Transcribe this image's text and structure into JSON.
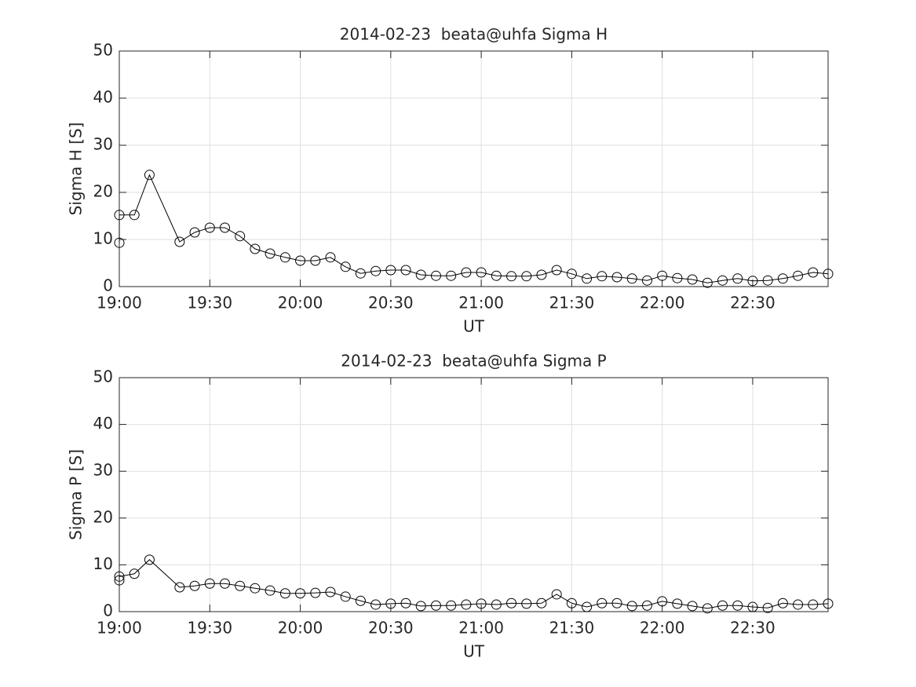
{
  "chart_data": [
    {
      "type": "line",
      "title": "2014-02-23  beata@uhfa Sigma H",
      "xlabel": "UT",
      "ylabel": "Sigma H [S]",
      "color": "#000000",
      "marker": "circle",
      "grid": true,
      "x": [
        "19:00",
        "19:00",
        "19:05",
        "19:10",
        "19:20",
        "19:25",
        "19:30",
        "19:35",
        "19:40",
        "19:45",
        "19:50",
        "19:55",
        "20:00",
        "20:05",
        "20:10",
        "20:15",
        "20:20",
        "20:25",
        "20:30",
        "20:35",
        "20:40",
        "20:45",
        "20:50",
        "20:55",
        "21:00",
        "21:05",
        "21:10",
        "21:15",
        "21:20",
        "21:25",
        "21:30",
        "21:35",
        "21:40",
        "21:45",
        "21:50",
        "21:55",
        "22:00",
        "22:05",
        "22:10",
        "22:15",
        "22:20",
        "22:25",
        "22:30",
        "22:35",
        "22:40",
        "22:45",
        "22:50",
        "22:55"
      ],
      "values": [
        9.3,
        15.2,
        15.2,
        23.7,
        9.5,
        11.5,
        12.5,
        12.5,
        10.7,
        8.0,
        7.0,
        6.2,
        5.5,
        5.5,
        6.2,
        4.2,
        2.8,
        3.3,
        3.5,
        3.5,
        2.5,
        2.3,
        2.3,
        3.0,
        3.0,
        2.3,
        2.2,
        2.2,
        2.5,
        3.5,
        2.7,
        1.7,
        2.2,
        2.0,
        1.7,
        1.3,
        2.3,
        1.8,
        1.5,
        0.8,
        1.3,
        1.7,
        1.2,
        1.3,
        1.7,
        2.3,
        3.0,
        2.7
      ],
      "xlim": [
        "19:00",
        "22:55"
      ],
      "xticks": [
        "19:00",
        "19:30",
        "20:00",
        "20:30",
        "21:00",
        "21:30",
        "22:00",
        "22:30"
      ],
      "ylim": [
        0,
        50
      ],
      "yticks": [
        0,
        10,
        20,
        30,
        40,
        50
      ]
    },
    {
      "type": "line",
      "title": "2014-02-23  beata@uhfa Sigma P",
      "xlabel": "UT",
      "ylabel": "Sigma P [S]",
      "color": "#000000",
      "marker": "circle",
      "grid": true,
      "x": [
        "19:00",
        "19:00",
        "19:05",
        "19:10",
        "19:20",
        "19:25",
        "19:30",
        "19:35",
        "19:40",
        "19:45",
        "19:50",
        "19:55",
        "20:00",
        "20:05",
        "20:10",
        "20:15",
        "20:20",
        "20:25",
        "20:30",
        "20:35",
        "20:40",
        "20:45",
        "20:50",
        "20:55",
        "21:00",
        "21:05",
        "21:10",
        "21:15",
        "21:20",
        "21:25",
        "21:30",
        "21:35",
        "21:40",
        "21:45",
        "21:50",
        "21:55",
        "22:00",
        "22:05",
        "22:10",
        "22:15",
        "22:20",
        "22:25",
        "22:30",
        "22:35",
        "22:40",
        "22:45",
        "22:50",
        "22:55"
      ],
      "values": [
        6.7,
        7.5,
        8.1,
        11.1,
        5.2,
        5.5,
        6.0,
        6.0,
        5.5,
        5.0,
        4.5,
        3.9,
        3.9,
        4.0,
        4.2,
        3.2,
        2.3,
        1.5,
        1.7,
        1.8,
        1.2,
        1.3,
        1.3,
        1.5,
        1.7,
        1.5,
        1.8,
        1.7,
        1.8,
        3.7,
        1.8,
        1.0,
        1.8,
        1.8,
        1.2,
        1.3,
        2.2,
        1.7,
        1.2,
        0.7,
        1.3,
        1.3,
        1.0,
        0.8,
        1.8,
        1.5,
        1.5,
        1.7
      ],
      "xlim": [
        "19:00",
        "22:55"
      ],
      "xticks": [
        "19:00",
        "19:30",
        "20:00",
        "20:30",
        "21:00",
        "21:30",
        "22:00",
        "22:30"
      ],
      "ylim": [
        0,
        50
      ],
      "yticks": [
        0,
        10,
        20,
        30,
        40,
        50
      ]
    }
  ]
}
